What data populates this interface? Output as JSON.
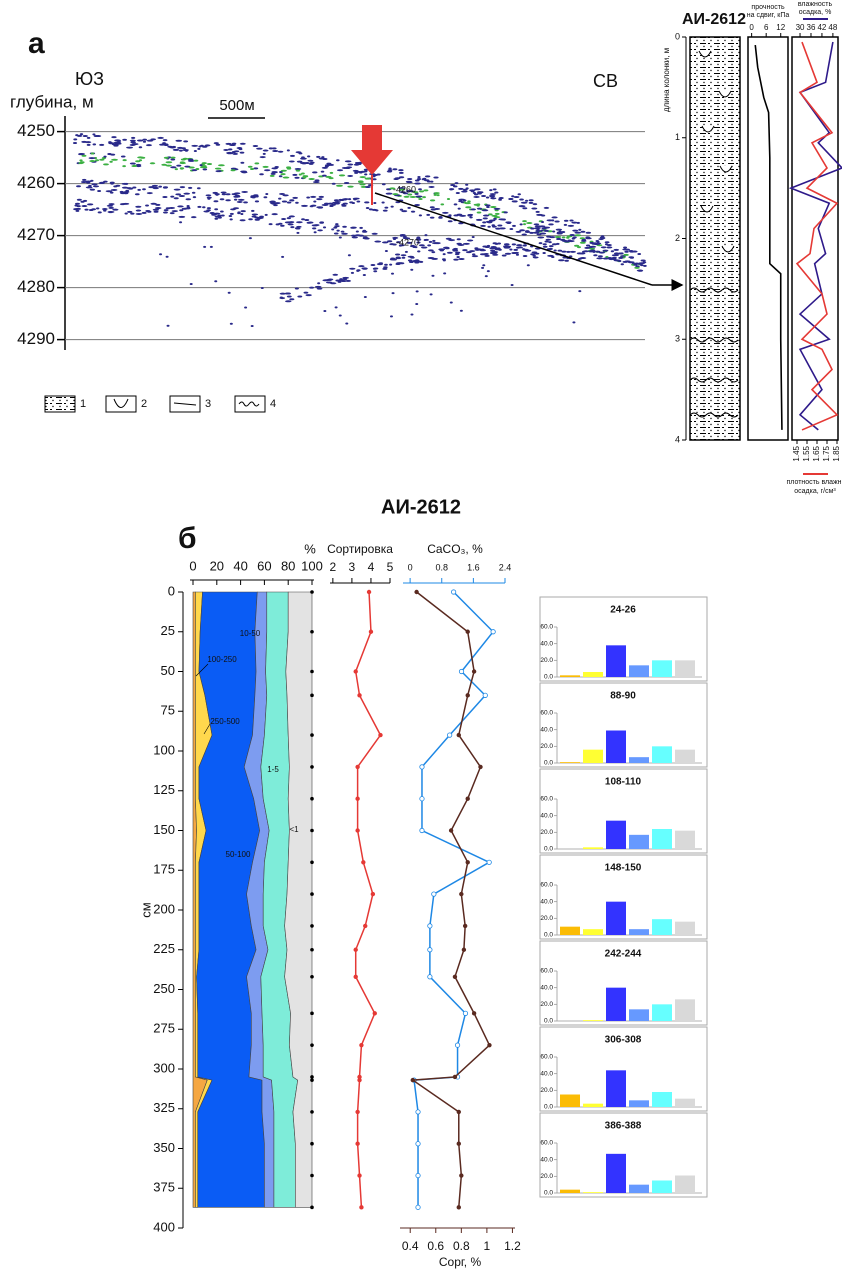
{
  "panel_labels": [
    "а",
    "б"
  ],
  "chart_data": [
    {
      "type": "image",
      "left_label": "ЮЗ",
      "right_label": "СВ",
      "ylabel": "глубина, м",
      "scale_label": "500м",
      "ylim": [
        4247,
        4292
      ],
      "yticks": [
        4250,
        4260,
        4270,
        4280,
        4290
      ],
      "grid": true,
      "annotations": [
        "-4260",
        "-4270"
      ],
      "legend": [
        "1",
        "2",
        "3",
        "4"
      ]
    },
    {
      "type": "core",
      "title": "АИ-2612",
      "ylabel": "длина колонки, м",
      "ylim": [
        0,
        4
      ],
      "yticks": [
        0,
        1,
        2,
        3,
        4
      ],
      "profiles": [
        {
          "label": [
            "прочность",
            "на сдвиг, кПа"
          ],
          "color": "#000000",
          "axis": "top",
          "xlim": [
            -1.5,
            15
          ],
          "xticks": [
            0,
            6,
            12
          ],
          "y": [
            0.08,
            0.3,
            0.6,
            0.75,
            1.2,
            2.25,
            2.35,
            3.0,
            3.9
          ],
          "values": [
            1.5,
            2.5,
            5,
            7,
            7.5,
            7.5,
            12,
            12,
            12.5
          ]
        },
        {
          "label": [
            "влажность",
            "осадка, %"
          ],
          "color": "#2e1a8a",
          "axis": "top",
          "xlim": [
            25.6,
            50.8
          ],
          "xticks": [
            30,
            36,
            42,
            48
          ],
          "y": [
            0.05,
            0.45,
            0.55,
            0.95,
            1.05,
            1.3,
            1.5,
            1.65,
            1.9,
            2.15,
            2.25,
            2.55,
            2.75,
            3.0,
            3.1,
            3.3,
            3.5,
            3.75,
            3.9
          ],
          "values": [
            48,
            44,
            30,
            46,
            40,
            53,
            25,
            46,
            40,
            44,
            38,
            42,
            30,
            46,
            30,
            36,
            42,
            30,
            40
          ]
        },
        {
          "label": [
            "плотность влажн.",
            "осадка, г/см³"
          ],
          "color": "#e53935",
          "axis": "bottom",
          "xlim": [
            1.4,
            1.86
          ],
          "xticks": [
            1.45,
            1.55,
            1.65,
            1.75,
            1.85
          ],
          "y": [
            0.05,
            0.45,
            0.55,
            0.95,
            1.05,
            1.3,
            1.5,
            1.65,
            1.9,
            2.15,
            2.25,
            2.55,
            2.75,
            3.0,
            3.1,
            3.3,
            3.5,
            3.75,
            3.9
          ],
          "values": [
            1.5,
            1.65,
            1.48,
            1.8,
            1.6,
            1.75,
            1.55,
            1.85,
            1.62,
            1.58,
            1.45,
            1.7,
            1.75,
            1.5,
            1.7,
            1.8,
            1.6,
            1.85,
            1.5
          ]
        }
      ]
    },
    {
      "type": "area",
      "title": "АИ-2612",
      "xlabel": "%",
      "ylabel": "см",
      "xlim": [
        0,
        100
      ],
      "xticks": [
        0,
        20,
        40,
        60,
        80,
        100
      ],
      "ylim": [
        0,
        400
      ],
      "yticks": [
        0,
        25,
        50,
        75,
        100,
        125,
        150,
        175,
        200,
        225,
        250,
        275,
        300,
        325,
        350,
        375,
        400
      ],
      "y": [
        0,
        25,
        50,
        65,
        90,
        110,
        130,
        150,
        170,
        190,
        210,
        225,
        242,
        265,
        285,
        305,
        307,
        327,
        347,
        367,
        387
      ],
      "series": [
        {
          "name": "100-250",
          "color": "#f5a742",
          "values": [
            2,
            2,
            2,
            2,
            2,
            2,
            2,
            3,
            2,
            2,
            2,
            2,
            2,
            2,
            2,
            2,
            12,
            2,
            2,
            2,
            2
          ]
        },
        {
          "name": "250-500",
          "color": "#ffd84d",
          "values": [
            6,
            4,
            3,
            8,
            14,
            3,
            3,
            8,
            3,
            3,
            3,
            3,
            1,
            2,
            2,
            2,
            4,
            2,
            2,
            2,
            2
          ]
        },
        {
          "name": "50-100",
          "color": "#0a5cf5",
          "values": [
            46,
            46,
            48,
            42,
            34,
            38,
            46,
            45,
            45,
            40,
            44,
            48,
            42,
            45,
            45,
            43,
            42,
            54,
            56,
            56,
            56
          ]
        },
        {
          "name": "10-50",
          "color": "#7d9cf0",
          "values": [
            8,
            10,
            8,
            10,
            10,
            14,
            8,
            8,
            10,
            14,
            10,
            10,
            12,
            9,
            10,
            12,
            8,
            10,
            8,
            8,
            8
          ]
        },
        {
          "name": "1-5",
          "color": "#7eecd9",
          "values": [
            18,
            18,
            17,
            17,
            20,
            24,
            21,
            17,
            20,
            20,
            18,
            16,
            20,
            24,
            22,
            25,
            22,
            16,
            18,
            18,
            18
          ]
        },
        {
          "name": "<1",
          "color": "#e3e3e3",
          "values": [
            20,
            20,
            22,
            21,
            20,
            19,
            20,
            19,
            20,
            21,
            23,
            21,
            23,
            18,
            19,
            16,
            12,
            16,
            14,
            14,
            14
          ]
        }
      ],
      "profiles": [
        {
          "label": "Сортировка",
          "color": "#e53935",
          "axis": "top",
          "xlim": [
            1.85,
            5.0
          ],
          "xticks": [
            2,
            3,
            4,
            5
          ],
          "values": [
            3.9,
            4.0,
            3.2,
            3.4,
            4.5,
            3.3,
            3.3,
            3.3,
            3.6,
            4.1,
            3.7,
            3.2,
            3.2,
            4.2,
            3.5,
            3.4,
            3.4,
            3.3,
            3.3,
            3.4,
            3.5
          ]
        },
        {
          "label": "CaCO₃, %",
          "color": "#1e88e5",
          "axis": "top",
          "xlim": [
            -0.18,
            2.4
          ],
          "xticks": [
            0,
            0.8,
            1.6,
            2.4
          ],
          "values": [
            1.1,
            2.1,
            1.3,
            1.9,
            1.0,
            0.3,
            0.3,
            0.3,
            2.0,
            0.6,
            0.5,
            0.5,
            0.5,
            1.4,
            1.2,
            1.2,
            0.1,
            0.2,
            0.2,
            0.2,
            0.2
          ]
        },
        {
          "label": "Сорг, %",
          "color": "#5a2a20",
          "axis": "bottom",
          "xlim": [
            0.32,
            1.22
          ],
          "xticks": [
            0.4,
            0.6,
            0.8,
            1,
            1.2
          ],
          "values": [
            0.45,
            0.85,
            0.9,
            0.85,
            0.78,
            0.95,
            0.85,
            0.72,
            0.85,
            0.8,
            0.83,
            0.82,
            0.75,
            0.9,
            1.02,
            0.75,
            0.42,
            0.78,
            0.78,
            0.8,
            0.78
          ]
        }
      ]
    },
    {
      "type": "bar",
      "title": "24-26",
      "values": [
        2,
        6,
        38,
        14,
        20,
        20
      ],
      "colors": [
        "#fbbc05",
        "#ffff33",
        "#3333ff",
        "#6699ff",
        "#66ffff",
        "#d9d9d9"
      ],
      "ylim": [
        0,
        60
      ],
      "yticks": [
        {
          "value": 0,
          "label": "0.0"
        },
        {
          "value": 20,
          "label": "20.0"
        },
        {
          "value": 40,
          "label": "40.0"
        },
        {
          "value": 60,
          "label": "60.0"
        }
      ]
    },
    {
      "type": "bar",
      "title": "88-90",
      "values": [
        1,
        16,
        39,
        7,
        20,
        16
      ],
      "colors": [
        "#fbbc05",
        "#ffff33",
        "#3333ff",
        "#6699ff",
        "#66ffff",
        "#d9d9d9"
      ],
      "ylim": [
        0,
        60
      ],
      "yticks": [
        {
          "value": 0,
          "label": "0.0"
        },
        {
          "value": 20,
          "label": "20.0"
        },
        {
          "value": 40,
          "label": "40.0"
        },
        {
          "value": 60,
          "label": "60.0"
        }
      ]
    },
    {
      "type": "bar",
      "title": "108-110",
      "values": [
        0,
        2,
        34,
        17,
        24,
        22
      ],
      "colors": [
        "#fbbc05",
        "#ffff33",
        "#3333ff",
        "#6699ff",
        "#66ffff",
        "#d9d9d9"
      ],
      "ylim": [
        0,
        60
      ],
      "yticks": [
        {
          "value": 0,
          "label": "0.0"
        },
        {
          "value": 20,
          "label": "20.0"
        },
        {
          "value": 40,
          "label": "40.0"
        },
        {
          "value": 60,
          "label": "60.0"
        }
      ]
    },
    {
      "type": "bar",
      "title": "148-150",
      "values": [
        10,
        7,
        40,
        7,
        19,
        16
      ],
      "colors": [
        "#fbbc05",
        "#ffff33",
        "#3333ff",
        "#6699ff",
        "#66ffff",
        "#d9d9d9"
      ],
      "ylim": [
        0,
        60
      ],
      "yticks": [
        {
          "value": 0,
          "label": "0.0"
        },
        {
          "value": 20,
          "label": "20.0"
        },
        {
          "value": 40,
          "label": "40.0"
        },
        {
          "value": 60,
          "label": "60.0"
        }
      ]
    },
    {
      "type": "bar",
      "title": "242-244",
      "values": [
        0,
        1,
        40,
        14,
        20,
        26
      ],
      "colors": [
        "#fbbc05",
        "#ffff33",
        "#3333ff",
        "#6699ff",
        "#66ffff",
        "#d9d9d9"
      ],
      "ylim": [
        0,
        60
      ],
      "yticks": [
        {
          "value": 0,
          "label": "0.0"
        },
        {
          "value": 20,
          "label": "20.0"
        },
        {
          "value": 40,
          "label": "40.0"
        },
        {
          "value": 60,
          "label": "60.0"
        }
      ]
    },
    {
      "type": "bar",
      "title": "306-308",
      "values": [
        15,
        4,
        44,
        8,
        18,
        10
      ],
      "colors": [
        "#fbbc05",
        "#ffff33",
        "#3333ff",
        "#6699ff",
        "#66ffff",
        "#d9d9d9"
      ],
      "ylim": [
        0,
        60
      ],
      "yticks": [
        {
          "value": 0,
          "label": "0.0"
        },
        {
          "value": 20,
          "label": "20.0"
        },
        {
          "value": 40,
          "label": "40.0"
        },
        {
          "value": 60,
          "label": "60.0"
        }
      ]
    },
    {
      "type": "bar",
      "title": "386-388",
      "values": [
        4,
        1,
        47,
        10,
        15,
        21
      ],
      "colors": [
        "#fbbc05",
        "#ffff33",
        "#3333ff",
        "#6699ff",
        "#66ffff",
        "#d9d9d9"
      ],
      "ylim": [
        0,
        60
      ],
      "yticks": [
        {
          "value": 0,
          "label": "0.0"
        },
        {
          "value": 20,
          "label": "20.0"
        },
        {
          "value": 40,
          "label": "40.0"
        },
        {
          "value": 60,
          "label": "60.0"
        }
      ]
    }
  ]
}
